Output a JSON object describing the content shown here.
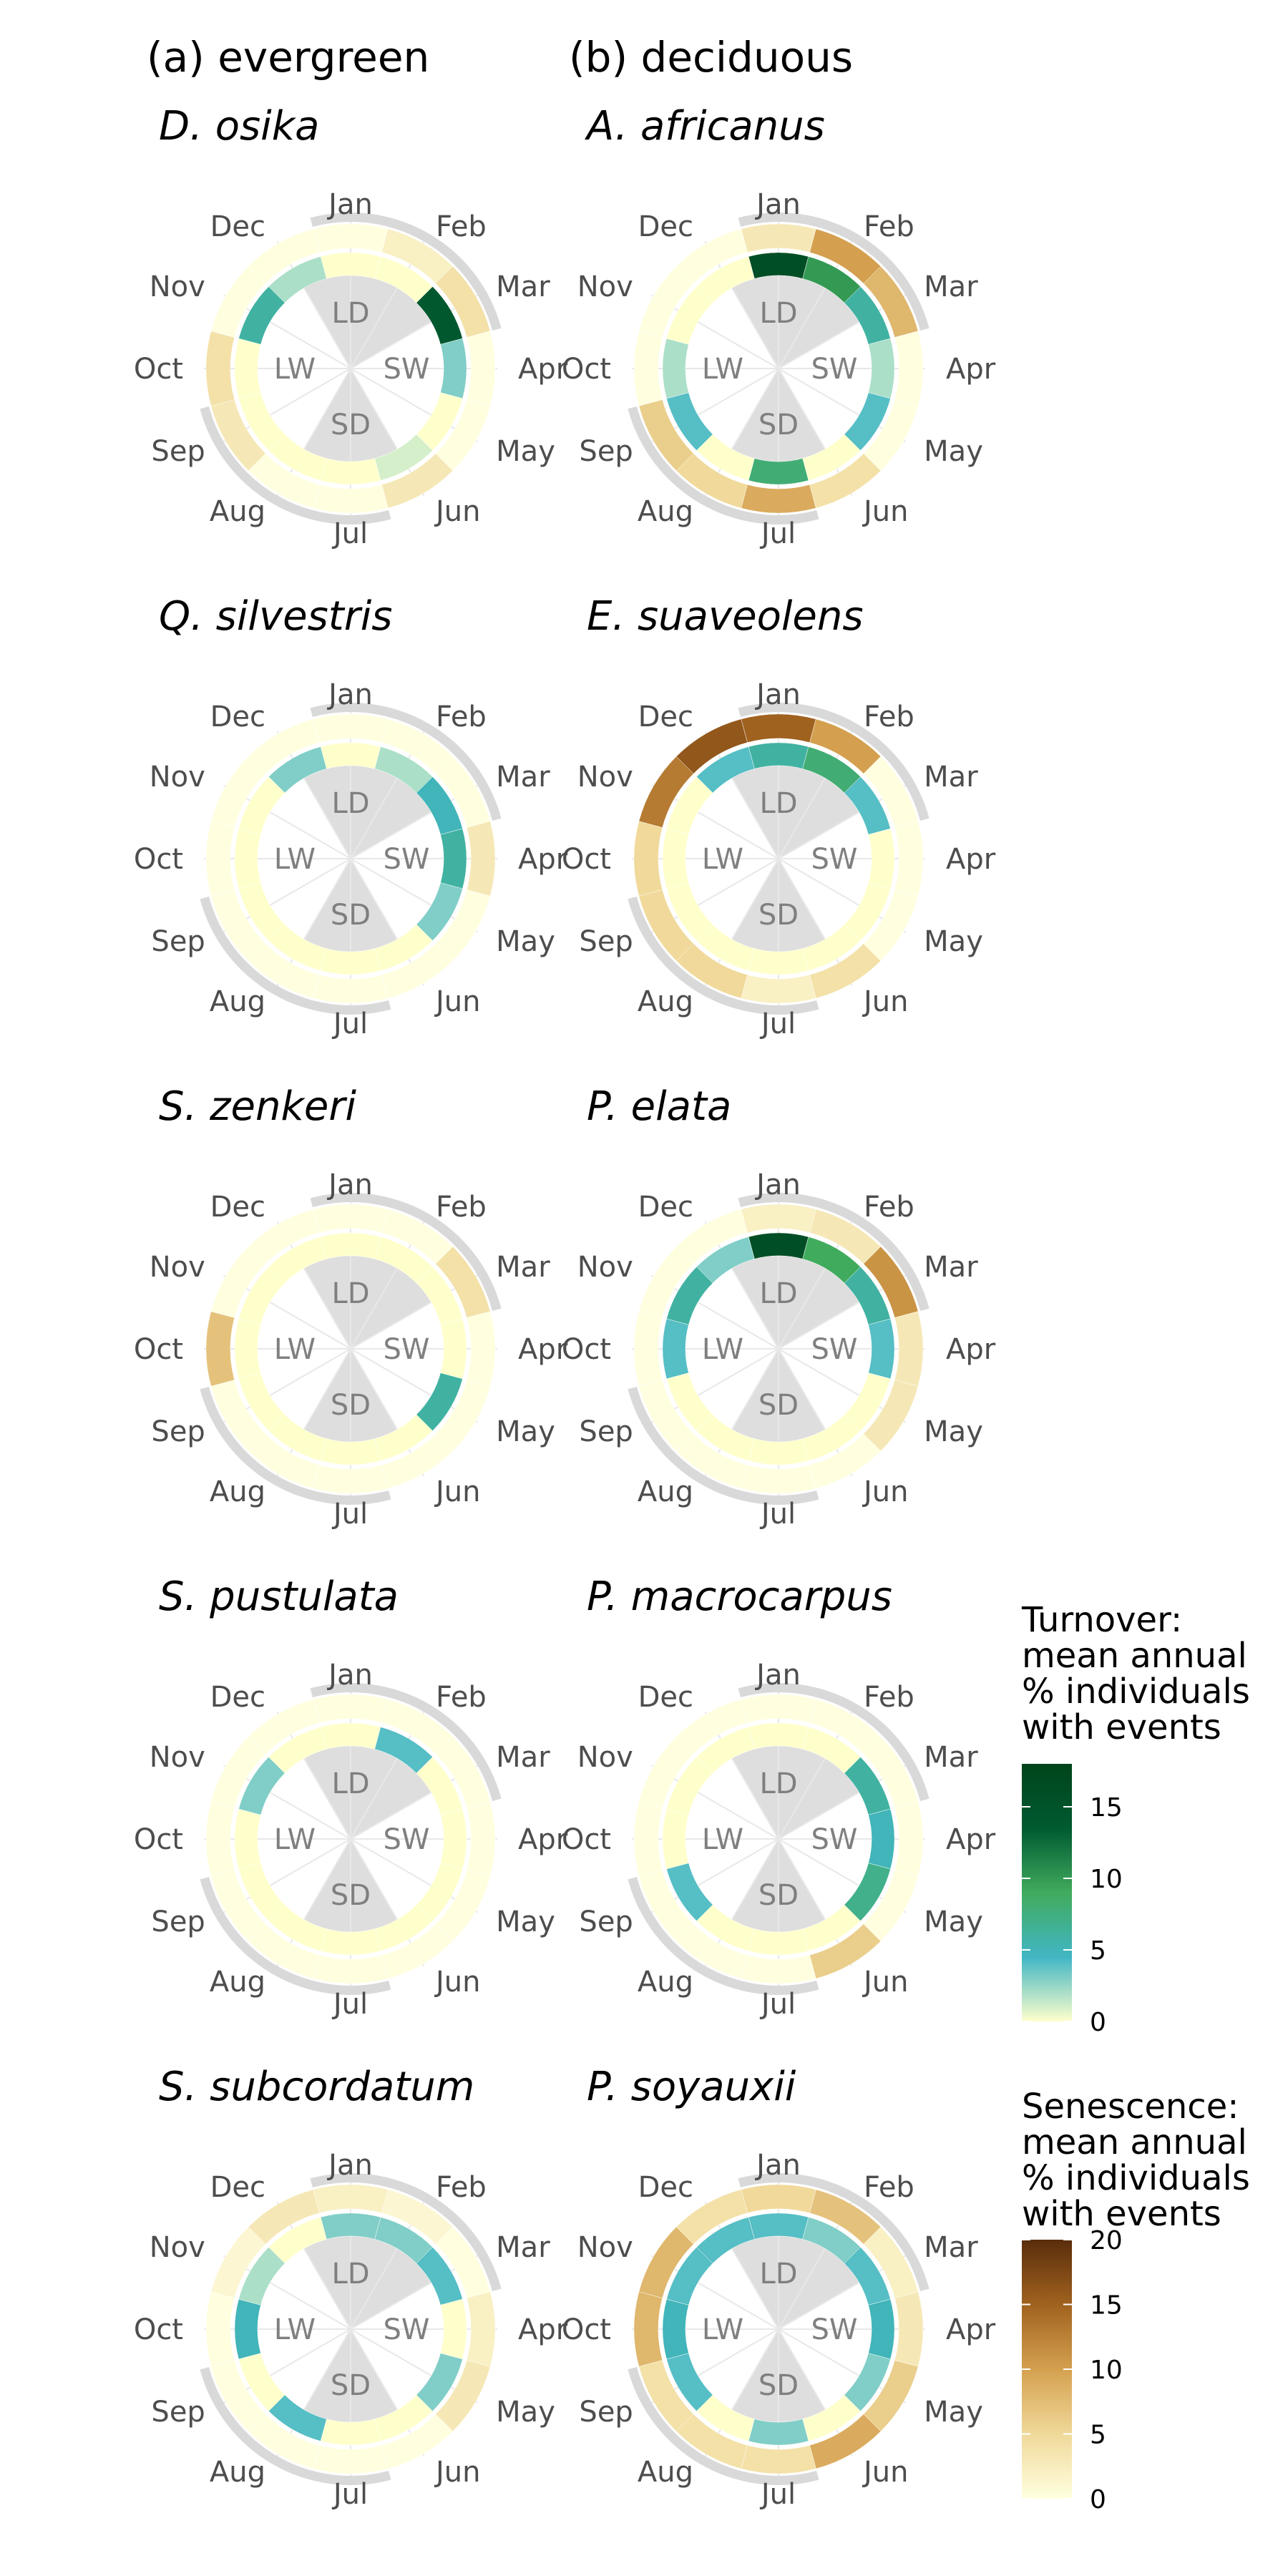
{
  "columns": [
    "(a) evergreen",
    "(b) deciduous"
  ],
  "months": [
    "Jan",
    "Feb",
    "Mar",
    "Apr",
    "May",
    "Jun",
    "Jul",
    "Aug",
    "Sep",
    "Oct",
    "Nov",
    "Dec"
  ],
  "seasons": [
    "LD",
    "SW",
    "SD",
    "LW"
  ],
  "legends": [
    {
      "title": [
        "Turnover:",
        "mean annual",
        "% individuals",
        "with events"
      ],
      "ticks": [
        "0",
        "5",
        "10",
        "15"
      ],
      "tick_values": [
        0,
        5,
        10,
        15
      ],
      "max": 18,
      "colors": [
        "#ffffcc",
        "#41b6c4",
        "#41ab5d",
        "#005a32",
        "#00441b"
      ]
    },
    {
      "title": [
        "Senescence:",
        "mean annual",
        "% individuals",
        "with events"
      ],
      "ticks": [
        "0",
        "5",
        "10",
        "15",
        "20"
      ],
      "tick_values": [
        0,
        5,
        10,
        15,
        20
      ],
      "max": 20,
      "colors": [
        "#ffffe0",
        "#f0d99a",
        "#d4a04f",
        "#a0621f",
        "#5a2d0c"
      ]
    }
  ],
  "chart_data": [
    {
      "type": "polar-ring",
      "species": "D. osika",
      "group": "evergreen",
      "turnover": [
        0,
        0,
        14,
        3,
        0,
        1,
        0,
        0,
        0,
        0,
        6,
        2
      ],
      "senescence": [
        0,
        2,
        4,
        0,
        0,
        3,
        0,
        0,
        3,
        4,
        0,
        0
      ]
    },
    {
      "type": "polar-ring",
      "species": "A. africanus",
      "group": "deciduous",
      "turnover": [
        16,
        10,
        6,
        2,
        4,
        0,
        8,
        0,
        4,
        2,
        0,
        0
      ],
      "senescence": [
        3,
        10,
        8,
        0,
        0,
        4,
        9,
        5,
        6,
        0,
        0,
        0
      ]
    },
    {
      "type": "polar-ring",
      "species": "Q. silvestris",
      "group": "evergreen",
      "turnover": [
        0,
        2,
        5,
        6,
        3,
        0,
        0,
        0,
        0,
        0,
        0,
        3
      ],
      "senescence": [
        0,
        0,
        0,
        3,
        0,
        0,
        0,
        0,
        0,
        0,
        0,
        0
      ]
    },
    {
      "type": "polar-ring",
      "species": "E. suaveolens",
      "group": "deciduous",
      "turnover": [
        6,
        8,
        4,
        0,
        0,
        0,
        0,
        0,
        0,
        0,
        0,
        4
      ],
      "senescence": [
        15,
        10,
        0,
        0,
        0,
        4,
        2,
        5,
        5,
        5,
        13,
        16
      ]
    },
    {
      "type": "polar-ring",
      "species": "S. zenkeri",
      "group": "evergreen",
      "turnover": [
        0,
        0,
        0,
        0,
        6,
        0,
        0,
        0,
        0,
        0,
        0,
        0
      ],
      "senescence": [
        0,
        0,
        4,
        0,
        0,
        0,
        0,
        0,
        0,
        7,
        0,
        0
      ]
    },
    {
      "type": "polar-ring",
      "species": "P. elata",
      "group": "deciduous",
      "turnover": [
        16,
        9,
        6,
        4,
        0,
        0,
        0,
        0,
        0,
        4,
        6,
        3
      ],
      "senescence": [
        2,
        3,
        11,
        3,
        3,
        0,
        0,
        0,
        0,
        0,
        0,
        0
      ]
    },
    {
      "type": "polar-ring",
      "species": "S. pustulata",
      "group": "evergreen",
      "turnover": [
        0,
        4,
        0,
        0,
        0,
        0,
        0,
        0,
        0,
        0,
        3,
        0
      ],
      "senescence": [
        0,
        0,
        0,
        0,
        0,
        0,
        0,
        0,
        0,
        0,
        0,
        0
      ]
    },
    {
      "type": "polar-ring",
      "species": "P. macrocarpus",
      "group": "deciduous",
      "turnover": [
        0,
        0,
        6,
        5,
        7,
        0,
        0,
        0,
        4,
        0,
        0,
        0
      ],
      "senescence": [
        0,
        0,
        0,
        0,
        0,
        6,
        0,
        0,
        0,
        0,
        0,
        0
      ]
    },
    {
      "type": "polar-ring",
      "species": "S. subcordatum",
      "group": "evergreen",
      "turnover": [
        3,
        3,
        4,
        0,
        3,
        0,
        0,
        4,
        0,
        5,
        2,
        0
      ],
      "senescence": [
        2,
        1,
        0,
        2,
        3,
        0,
        0,
        0,
        0,
        0,
        1,
        3
      ]
    },
    {
      "type": "polar-ring",
      "species": "P. soyauxii",
      "group": "deciduous",
      "turnover": [
        4,
        3,
        4,
        5,
        3,
        0,
        3,
        0,
        4,
        5,
        4,
        4
      ],
      "senescence": [
        5,
        7,
        2,
        3,
        6,
        9,
        4,
        4,
        4,
        8,
        8,
        4
      ]
    }
  ]
}
